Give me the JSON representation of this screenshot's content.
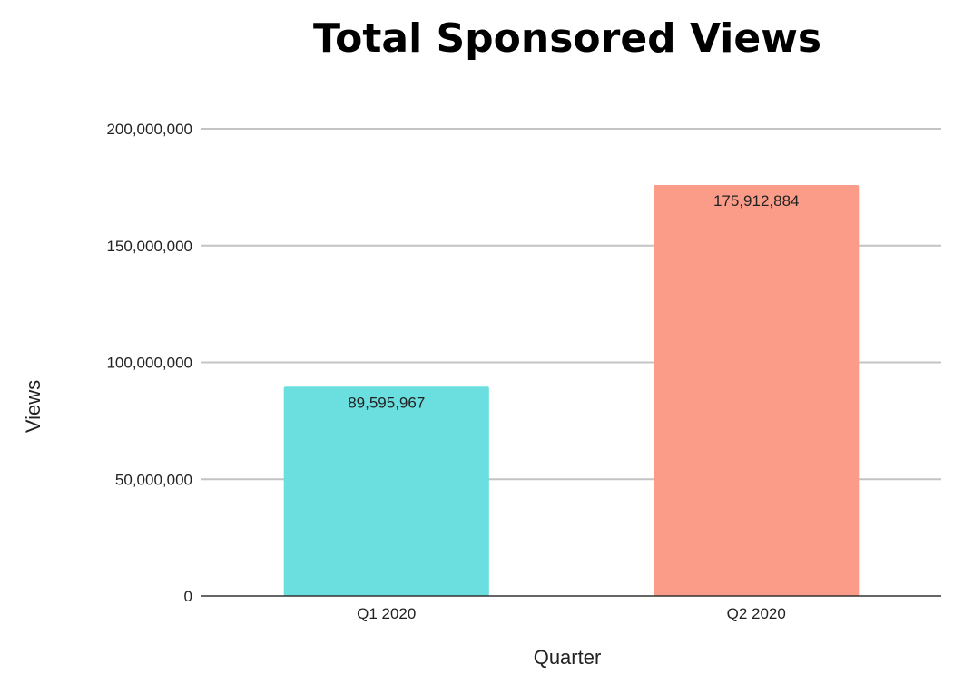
{
  "chart_data": {
    "type": "bar",
    "title": "Total Sponsored Views",
    "xlabel": "Quarter",
    "ylabel": "Views",
    "categories": [
      "Q1 2020",
      "Q2 2020"
    ],
    "values": [
      89595967,
      175912884
    ],
    "data_labels": [
      "89,595,967",
      "175,912,884"
    ],
    "colors": [
      "#6bdfdf",
      "#fb9c89"
    ],
    "ylim": [
      0,
      200000000
    ],
    "yticks": [
      0,
      50000000,
      100000000,
      150000000,
      200000000
    ],
    "ytick_labels": [
      "0",
      "50,000,000",
      "100,000,000",
      "150,000,000",
      "200,000,000"
    ],
    "grid": true,
    "legend": "none"
  }
}
